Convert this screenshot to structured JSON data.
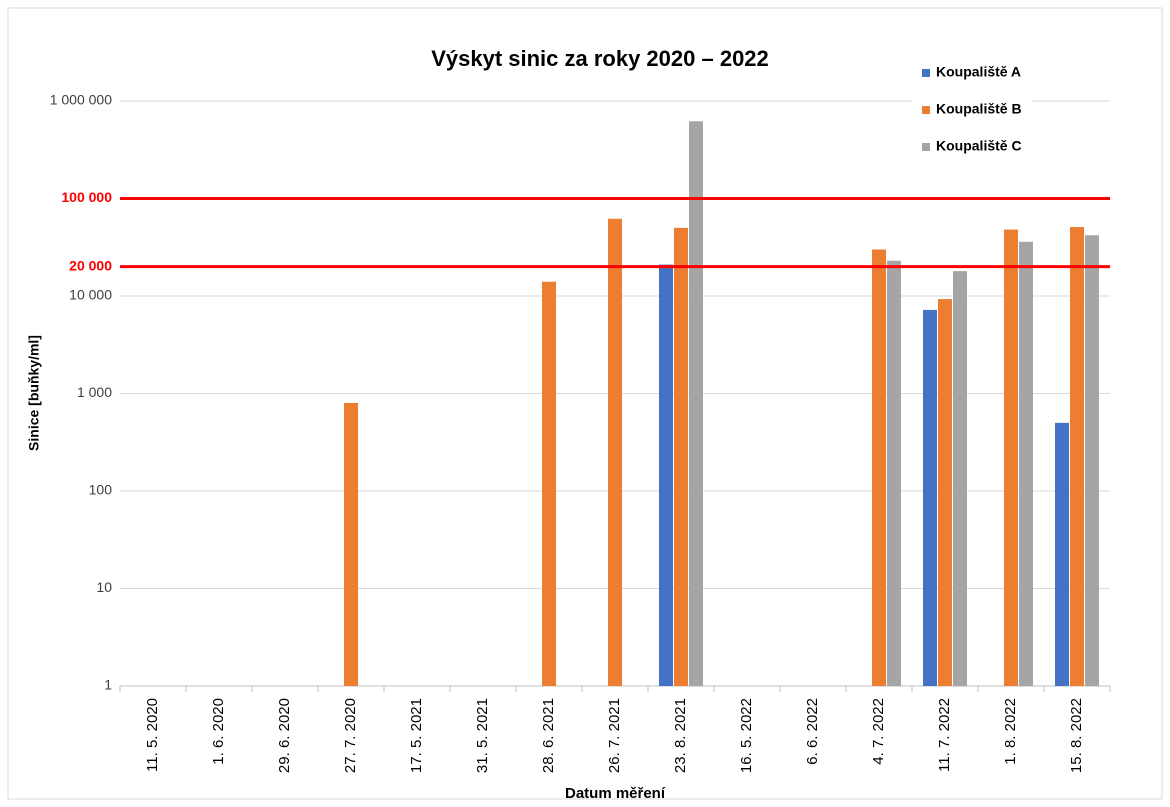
{
  "chart_data": {
    "type": "bar",
    "title": "Výskyt sinic za roky 2020 – 2022",
    "x_label": "Datum měření",
    "y_label": "Sinice [buňky/ml]",
    "categories": [
      "11. 5. 2020",
      "1. 6. 2020",
      "29. 6. 2020",
      "27. 7. 2020",
      "17. 5. 2021",
      "31. 5. 2021",
      "28. 6. 2021",
      "26. 7. 2021",
      "23. 8. 2021",
      "16. 5. 2022",
      "6. 6. 2022",
      "4. 7. 2022",
      "11. 7. 2022",
      "1. 8. 2022",
      "15. 8. 2022"
    ],
    "series": [
      {
        "name": "Koupaliště A",
        "color": "#4472c4",
        "values": [
          null,
          null,
          null,
          null,
          null,
          null,
          null,
          null,
          21000,
          null,
          null,
          null,
          7200,
          null,
          500
        ]
      },
      {
        "name": "Koupaliště B",
        "color": "#ed7d31",
        "values": [
          null,
          null,
          null,
          800,
          null,
          null,
          14000,
          62000,
          50000,
          null,
          null,
          30000,
          9300,
          48000,
          51000
        ]
      },
      {
        "name": "Koupaliště C",
        "color": "#a5a5a5",
        "values": [
          null,
          null,
          null,
          null,
          null,
          null,
          null,
          null,
          620000,
          null,
          null,
          23000,
          18000,
          36000,
          42000
        ]
      }
    ],
    "log_scale": true,
    "ylim": [
      1,
      1000000
    ],
    "yticks": [
      1,
      10,
      100,
      {
        "value": 1000,
        "label": "1 000"
      },
      {
        "value": 10000,
        "label": "10 000"
      },
      {
        "value": 1000000,
        "label": "1 000 000"
      }
    ],
    "grid": true,
    "legend_position": "top-right",
    "threshold_color": "#ff0000",
    "thresholds": [
      {
        "value": 100000,
        "label": "100 000"
      },
      {
        "value": 20000,
        "label": "20 000"
      }
    ]
  }
}
